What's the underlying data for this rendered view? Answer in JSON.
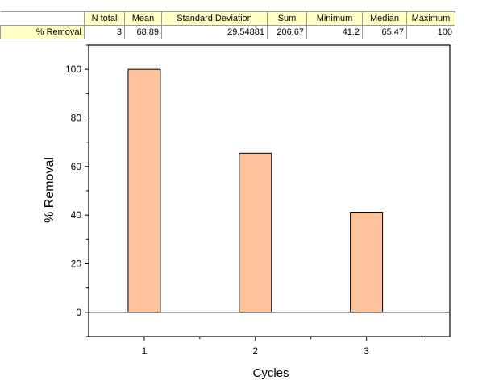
{
  "stats_table": {
    "headers": [
      "N total",
      "Mean",
      "Standard Deviation",
      "Sum",
      "Minimum",
      "Median",
      "Maximum"
    ],
    "row_label": "% Removal",
    "row_values": [
      "3",
      "68.89",
      "29.54881",
      "206.67",
      "41.2",
      "65.47",
      "100"
    ]
  },
  "chart_data": {
    "type": "bar",
    "categories": [
      "1",
      "2",
      "3"
    ],
    "values": [
      100,
      65.47,
      41.2
    ],
    "xlabel": "Cycles",
    "ylabel": "% Removal",
    "ylim": [
      -10,
      110
    ],
    "yticks": [
      0,
      20,
      40,
      60,
      80,
      100
    ],
    "ytick_labels": [
      "0",
      "20",
      "40",
      "60",
      "80",
      "100"
    ],
    "grid": false,
    "bar_color": "#ffc19a",
    "bar_edge_color": "#000000"
  }
}
